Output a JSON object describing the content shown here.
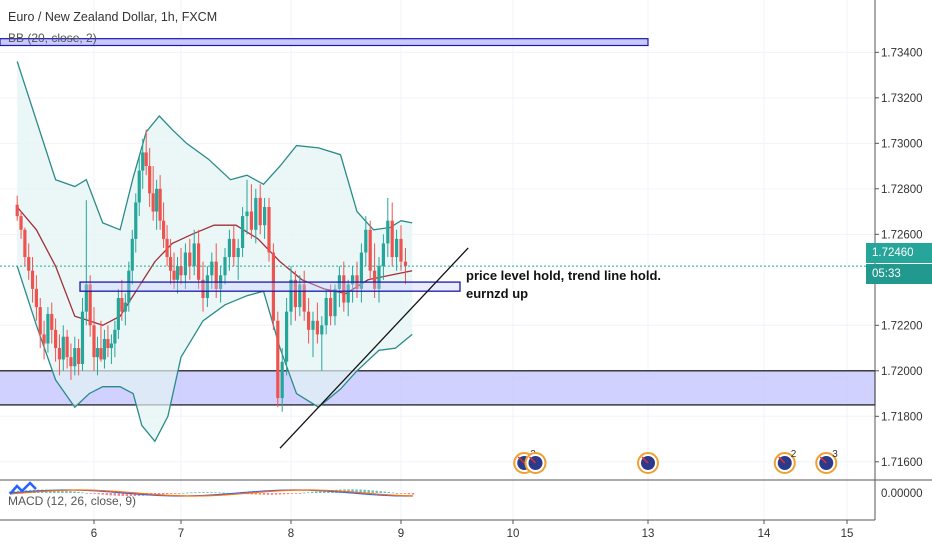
{
  "chart_data": {
    "type": "candlestick",
    "title": "Euro / New Zealand Dollar, 1h, FXCM",
    "indicators": {
      "bb_label": "BB (20, close, 2)",
      "macd_label": "MACD (12, 26, close, 9)"
    },
    "y_ticks": [
      "1.73400",
      "1.73200",
      "1.73000",
      "1.72800",
      "1.72600",
      "1.72200",
      "1.72000",
      "1.71800",
      "1.71600"
    ],
    "y_tick_values": [
      1.734,
      1.732,
      1.73,
      1.728,
      1.726,
      1.722,
      1.72,
      1.718,
      1.716
    ],
    "ylim": [
      1.7152,
      1.7363
    ],
    "x_ticks": [
      "6",
      "7",
      "8",
      "9",
      "10",
      "13",
      "14",
      "15"
    ],
    "x_tick_values": [
      6,
      7,
      8,
      9,
      10,
      13,
      14,
      15
    ],
    "macd_tick": "0.00000",
    "current_price": "1.72460",
    "countdown": "05:33",
    "annotation_lines": [
      "price level hold, trend line hold.",
      "eurnzd up"
    ],
    "bands": [
      {
        "from": 1.7185,
        "to": 1.72
      },
      {
        "from": 1.7235,
        "to": 1.7239
      }
    ],
    "top_band": {
      "from": 1.7343,
      "to": 1.7346
    },
    "trendline": {
      "x1": 7.9,
      "y1": 1.7166,
      "x2": 9.6,
      "y2": 1.7254
    },
    "events": [
      {
        "x": 10.25,
        "count": "2"
      },
      {
        "x": 10.5,
        "count": ""
      },
      {
        "x": 13.0,
        "count": ""
      },
      {
        "x": 14.25,
        "count": "2"
      },
      {
        "x": 14.75,
        "count": "3"
      }
    ],
    "candles": [
      [
        5.2,
        1.7273,
        1.7277,
        1.7266,
        1.7268
      ],
      [
        5.24,
        1.7268,
        1.727,
        1.7258,
        1.7262
      ],
      [
        5.28,
        1.7262,
        1.7263,
        1.7246,
        1.725
      ],
      [
        5.32,
        1.725,
        1.7256,
        1.724,
        1.7244
      ],
      [
        5.36,
        1.7244,
        1.725,
        1.723,
        1.7236
      ],
      [
        5.4,
        1.7236,
        1.7242,
        1.7222,
        1.7228
      ],
      [
        5.44,
        1.7228,
        1.7232,
        1.721,
        1.7216
      ],
      [
        5.48,
        1.7216,
        1.7222,
        1.7205,
        1.7212
      ],
      [
        5.52,
        1.7212,
        1.7228,
        1.7208,
        1.7225
      ],
      [
        5.56,
        1.7225,
        1.723,
        1.7212,
        1.7218
      ],
      [
        5.6,
        1.7218,
        1.7223,
        1.7204,
        1.721
      ],
      [
        5.64,
        1.721,
        1.7216,
        1.7198,
        1.7205
      ],
      [
        5.68,
        1.7205,
        1.722,
        1.72,
        1.7215
      ],
      [
        5.72,
        1.7215,
        1.7218,
        1.7201,
        1.7206
      ],
      [
        5.76,
        1.7206,
        1.7212,
        1.7196,
        1.7202
      ],
      [
        5.8,
        1.7202,
        1.7215,
        1.7198,
        1.721
      ],
      [
        5.84,
        1.721,
        1.7214,
        1.7198,
        1.7203
      ],
      [
        5.88,
        1.7203,
        1.7232,
        1.72,
        1.7226
      ],
      [
        5.92,
        1.7226,
        1.7275,
        1.722,
        1.7238
      ],
      [
        5.96,
        1.7238,
        1.7242,
        1.7215,
        1.722
      ],
      [
        6.0,
        1.722,
        1.7228,
        1.72,
        1.7206
      ],
      [
        6.04,
        1.7206,
        1.7215,
        1.7198,
        1.721
      ],
      [
        6.08,
        1.721,
        1.7222,
        1.7204,
        1.7205
      ],
      [
        6.12,
        1.7205,
        1.7218,
        1.7201,
        1.7214
      ],
      [
        6.16,
        1.7214,
        1.722,
        1.7206,
        1.721
      ],
      [
        6.2,
        1.721,
        1.7216,
        1.7203,
        1.7212
      ],
      [
        6.24,
        1.7212,
        1.7222,
        1.7206,
        1.7218
      ],
      [
        6.28,
        1.7218,
        1.7236,
        1.7214,
        1.7232
      ],
      [
        6.32,
        1.7232,
        1.724,
        1.7222,
        1.7226
      ],
      [
        6.36,
        1.7226,
        1.7234,
        1.722,
        1.723
      ],
      [
        6.4,
        1.723,
        1.7248,
        1.7226,
        1.7244
      ],
      [
        6.44,
        1.7244,
        1.7262,
        1.7238,
        1.7258
      ],
      [
        6.48,
        1.7258,
        1.7278,
        1.7252,
        1.7274
      ],
      [
        6.52,
        1.7274,
        1.7294,
        1.7268,
        1.7288
      ],
      [
        6.56,
        1.7288,
        1.7302,
        1.728,
        1.7296
      ],
      [
        6.6,
        1.7296,
        1.7306,
        1.7286,
        1.729
      ],
      [
        6.64,
        1.729,
        1.7298,
        1.7272,
        1.7278
      ],
      [
        6.68,
        1.7278,
        1.729,
        1.7266,
        1.727
      ],
      [
        6.72,
        1.727,
        1.7284,
        1.7262,
        1.728
      ],
      [
        6.76,
        1.728,
        1.7286,
        1.7262,
        1.7266
      ],
      [
        6.8,
        1.7266,
        1.7274,
        1.7254,
        1.7258
      ],
      [
        6.84,
        1.7258,
        1.7264,
        1.7246,
        1.725
      ],
      [
        6.88,
        1.725,
        1.7258,
        1.7238,
        1.7244
      ],
      [
        6.92,
        1.7244,
        1.7252,
        1.7236,
        1.724
      ],
      [
        6.96,
        1.724,
        1.725,
        1.7234,
        1.7246
      ],
      [
        7.0,
        1.7246,
        1.7254,
        1.7238,
        1.7242
      ],
      [
        7.04,
        1.7242,
        1.7256,
        1.7236,
        1.7252
      ],
      [
        7.08,
        1.7252,
        1.7258,
        1.724,
        1.7246
      ],
      [
        7.12,
        1.7246,
        1.7262,
        1.7242,
        1.7256
      ],
      [
        7.16,
        1.7256,
        1.7262,
        1.7236,
        1.724
      ],
      [
        7.2,
        1.724,
        1.7248,
        1.7226,
        1.7232
      ],
      [
        7.24,
        1.7232,
        1.7246,
        1.7228,
        1.7242
      ],
      [
        7.28,
        1.7242,
        1.7252,
        1.7236,
        1.7248
      ],
      [
        7.32,
        1.7248,
        1.7256,
        1.7232,
        1.7236
      ],
      [
        7.36,
        1.7236,
        1.7246,
        1.723,
        1.7242
      ],
      [
        7.4,
        1.7242,
        1.7254,
        1.7238,
        1.725
      ],
      [
        7.44,
        1.725,
        1.7262,
        1.7244,
        1.7258
      ],
      [
        7.48,
        1.7258,
        1.7264,
        1.7246,
        1.725
      ],
      [
        7.52,
        1.725,
        1.7258,
        1.724,
        1.7254
      ],
      [
        7.56,
        1.7254,
        1.7272,
        1.725,
        1.7268
      ],
      [
        7.6,
        1.7268,
        1.7284,
        1.726,
        1.727
      ],
      [
        7.64,
        1.727,
        1.7282,
        1.7258,
        1.7262
      ],
      [
        7.68,
        1.7262,
        1.728,
        1.7256,
        1.7276
      ],
      [
        7.72,
        1.7276,
        1.7282,
        1.726,
        1.7264
      ],
      [
        7.76,
        1.7264,
        1.7276,
        1.7258,
        1.7272
      ],
      [
        7.8,
        1.7272,
        1.7276,
        1.7248,
        1.7252
      ],
      [
        7.84,
        1.7252,
        1.7256,
        1.7218,
        1.7222
      ],
      [
        7.88,
        1.7222,
        1.7226,
        1.7184,
        1.7188
      ],
      [
        7.92,
        1.7188,
        1.721,
        1.7182,
        1.7204
      ],
      [
        7.96,
        1.7204,
        1.7232,
        1.7198,
        1.7226
      ],
      [
        8.0,
        1.7226,
        1.7246,
        1.722,
        1.724
      ],
      [
        8.04,
        1.724,
        1.7244,
        1.7222,
        1.7228
      ],
      [
        8.08,
        1.7228,
        1.7242,
        1.7224,
        1.7238
      ],
      [
        8.12,
        1.7238,
        1.7244,
        1.7222,
        1.7226
      ],
      [
        8.16,
        1.7226,
        1.7232,
        1.7212,
        1.7218
      ],
      [
        8.2,
        1.7218,
        1.7226,
        1.7206,
        1.7222
      ],
      [
        8.24,
        1.7222,
        1.723,
        1.7212,
        1.7216
      ],
      [
        8.28,
        1.7216,
        1.7224,
        1.72,
        1.722
      ],
      [
        8.32,
        1.722,
        1.7236,
        1.7216,
        1.7232
      ],
      [
        8.36,
        1.7232,
        1.7238,
        1.722,
        1.7224
      ],
      [
        8.4,
        1.7224,
        1.7238,
        1.722,
        1.7236
      ],
      [
        8.44,
        1.7236,
        1.7246,
        1.7228,
        1.7242
      ],
      [
        8.48,
        1.7242,
        1.7248,
        1.7226,
        1.723
      ],
      [
        8.52,
        1.723,
        1.724,
        1.7224,
        1.7238
      ],
      [
        8.56,
        1.7238,
        1.7246,
        1.723,
        1.7242
      ],
      [
        8.6,
        1.7242,
        1.7248,
        1.7232,
        1.7236
      ],
      [
        8.64,
        1.7236,
        1.7256,
        1.723,
        1.7252
      ],
      [
        8.68,
        1.7252,
        1.7268,
        1.7246,
        1.7262
      ],
      [
        8.72,
        1.7262,
        1.7266,
        1.724,
        1.7244
      ],
      [
        8.76,
        1.7244,
        1.7256,
        1.7232,
        1.7236
      ],
      [
        8.8,
        1.7236,
        1.725,
        1.723,
        1.7246
      ],
      [
        8.84,
        1.7246,
        1.726,
        1.724,
        1.7256
      ],
      [
        8.88,
        1.7256,
        1.7276,
        1.725,
        1.7266
      ],
      [
        8.92,
        1.7266,
        1.7274,
        1.7246,
        1.725
      ],
      [
        8.96,
        1.725,
        1.7262,
        1.7244,
        1.7258
      ],
      [
        9.0,
        1.7258,
        1.7264,
        1.7244,
        1.7248
      ],
      [
        9.04,
        1.7248,
        1.7254,
        1.7238,
        1.7246
      ]
    ],
    "bb_upper": [
      [
        5.2,
        1.7336
      ],
      [
        5.4,
        1.731
      ],
      [
        5.6,
        1.7284
      ],
      [
        5.8,
        1.7281
      ],
      [
        5.92,
        1.7284
      ],
      [
        6.1,
        1.7265
      ],
      [
        6.3,
        1.7262
      ],
      [
        6.45,
        1.7285
      ],
      [
        6.6,
        1.7305
      ],
      [
        6.75,
        1.7312
      ],
      [
        6.9,
        1.7306
      ],
      [
        7.05,
        1.73
      ],
      [
        7.25,
        1.7293
      ],
      [
        7.45,
        1.7284
      ],
      [
        7.6,
        1.7286
      ],
      [
        7.75,
        1.7282
      ],
      [
        7.9,
        1.729
      ],
      [
        8.05,
        1.7299
      ],
      [
        8.25,
        1.7298
      ],
      [
        8.45,
        1.7295
      ],
      [
        8.6,
        1.727
      ],
      [
        8.75,
        1.7262
      ],
      [
        8.9,
        1.7263
      ],
      [
        9.0,
        1.7266
      ],
      [
        9.1,
        1.7265
      ]
    ],
    "bb_mid": [
      [
        5.2,
        1.7272
      ],
      [
        5.4,
        1.7262
      ],
      [
        5.6,
        1.7246
      ],
      [
        5.8,
        1.7224
      ],
      [
        5.95,
        1.7222
      ],
      [
        6.1,
        1.722
      ],
      [
        6.3,
        1.7224
      ],
      [
        6.5,
        1.7236
      ],
      [
        6.7,
        1.7248
      ],
      [
        6.9,
        1.7256
      ],
      [
        7.1,
        1.726
      ],
      [
        7.3,
        1.7264
      ],
      [
        7.5,
        1.7264
      ],
      [
        7.7,
        1.7258
      ],
      [
        7.9,
        1.7248
      ],
      [
        8.1,
        1.724
      ],
      [
        8.3,
        1.7236
      ],
      [
        8.5,
        1.7234
      ],
      [
        8.7,
        1.724
      ],
      [
        8.9,
        1.7242
      ],
      [
        9.1,
        1.7244
      ]
    ],
    "bb_lower": [
      [
        5.2,
        1.7246
      ],
      [
        5.4,
        1.722
      ],
      [
        5.6,
        1.7196
      ],
      [
        5.8,
        1.7184
      ],
      [
        5.95,
        1.719
      ],
      [
        6.1,
        1.7193
      ],
      [
        6.3,
        1.7193
      ],
      [
        6.45,
        1.719
      ],
      [
        6.55,
        1.7176
      ],
      [
        6.7,
        1.7169
      ],
      [
        6.85,
        1.718
      ],
      [
        7.0,
        1.7206
      ],
      [
        7.2,
        1.7222
      ],
      [
        7.4,
        1.7229
      ],
      [
        7.6,
        1.7233
      ],
      [
        7.75,
        1.7235
      ],
      [
        7.9,
        1.721
      ],
      [
        8.05,
        1.719
      ],
      [
        8.25,
        1.7184
      ],
      [
        8.45,
        1.7192
      ],
      [
        8.6,
        1.72
      ],
      [
        8.8,
        1.7209
      ],
      [
        8.95,
        1.721
      ],
      [
        9.1,
        1.7216
      ]
    ]
  }
}
